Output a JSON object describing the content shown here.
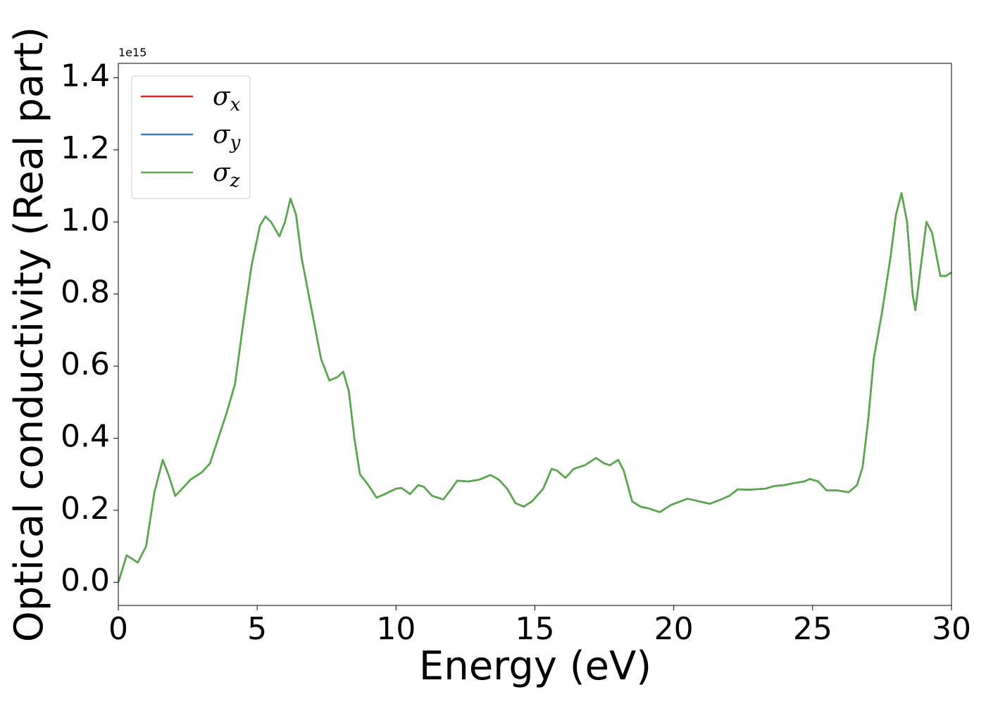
{
  "chart_data": {
    "type": "line",
    "xlabel": "Energy (eV)",
    "ylabel": "Optical conductivity (Real part)",
    "y_offset_text": "1e15",
    "xlim": [
      0,
      30
    ],
    "ylim": [
      -0.064,
      1.44
    ],
    "xticks": [
      0,
      5,
      10,
      15,
      20,
      25,
      30
    ],
    "yticks": [
      {
        "value": 0,
        "label": "0.0"
      },
      0.2,
      0.4,
      0.6,
      0.8,
      {
        "value": 1,
        "label": "1.0"
      },
      1.2,
      1.4
    ],
    "legend": "upper left",
    "x": [
      0,
      0.3,
      0.5,
      0.7,
      1.0,
      1.3,
      1.6,
      1.8,
      2.05,
      2.3,
      2.6,
      3.0,
      3.3,
      3.6,
      3.9,
      4.2,
      4.5,
      4.8,
      5.1,
      5.3,
      5.5,
      5.8,
      6.0,
      6.2,
      6.4,
      6.6,
      7.0,
      7.3,
      7.6,
      7.9,
      8.1,
      8.3,
      8.5,
      8.7,
      9.0,
      9.3,
      9.6,
      10.0,
      10.2,
      10.5,
      10.8,
      11.0,
      11.3,
      11.7,
      12.0,
      12.2,
      12.6,
      13.0,
      13.4,
      13.7,
      14.0,
      14.3,
      14.6,
      14.9,
      15.3,
      15.6,
      15.8,
      16.1,
      16.4,
      16.8,
      17.2,
      17.5,
      17.7,
      18.0,
      18.2,
      18.5,
      18.8,
      19.1,
      19.5,
      19.9,
      20.5,
      20.9,
      21.3,
      21.7,
      22.0,
      22.3,
      22.7,
      23.3,
      23.6,
      24.0,
      24.3,
      24.7,
      24.9,
      25.2,
      25.5,
      25.9,
      26.3,
      26.6,
      26.8,
      27.0,
      27.2,
      27.5,
      27.8,
      28.0,
      28.2,
      28.4,
      28.6,
      28.7,
      28.9,
      29.1,
      29.3,
      29.6,
      29.8,
      30
    ],
    "series": [
      {
        "name": "σx",
        "color": "#d62728",
        "values": [
          0,
          0.075,
          0.065,
          0.055,
          0.1,
          0.25,
          0.34,
          0.3,
          0.24,
          0.26,
          0.285,
          0.305,
          0.33,
          0.4,
          0.47,
          0.55,
          0.72,
          0.88,
          0.99,
          1.015,
          1.0,
          0.96,
          1.0,
          1.065,
          1.02,
          0.9,
          0.74,
          0.62,
          0.56,
          0.57,
          0.585,
          0.53,
          0.4,
          0.3,
          0.27,
          0.235,
          0.245,
          0.26,
          0.262,
          0.245,
          0.27,
          0.265,
          0.24,
          0.23,
          0.26,
          0.282,
          0.28,
          0.285,
          0.298,
          0.285,
          0.26,
          0.22,
          0.21,
          0.225,
          0.26,
          0.315,
          0.31,
          0.29,
          0.315,
          0.325,
          0.345,
          0.33,
          0.325,
          0.34,
          0.31,
          0.225,
          0.21,
          0.205,
          0.195,
          0.215,
          0.232,
          0.225,
          0.218,
          0.23,
          0.24,
          0.258,
          0.257,
          0.26,
          0.267,
          0.27,
          0.275,
          0.28,
          0.287,
          0.28,
          0.255,
          0.255,
          0.25,
          0.27,
          0.32,
          0.45,
          0.62,
          0.75,
          0.9,
          1.02,
          1.08,
          1.0,
          0.8,
          0.755,
          0.88,
          1.0,
          0.97,
          0.85,
          0.85,
          0.86
        ]
      },
      {
        "name": "σy",
        "color": "#3b7db5",
        "values": [
          0,
          0.075,
          0.065,
          0.055,
          0.1,
          0.25,
          0.34,
          0.3,
          0.24,
          0.26,
          0.285,
          0.305,
          0.33,
          0.4,
          0.47,
          0.55,
          0.72,
          0.88,
          0.99,
          1.015,
          1.0,
          0.96,
          1.0,
          1.065,
          1.02,
          0.9,
          0.74,
          0.62,
          0.56,
          0.57,
          0.585,
          0.53,
          0.4,
          0.3,
          0.27,
          0.235,
          0.245,
          0.26,
          0.262,
          0.245,
          0.27,
          0.265,
          0.24,
          0.23,
          0.26,
          0.282,
          0.28,
          0.285,
          0.298,
          0.285,
          0.26,
          0.22,
          0.21,
          0.225,
          0.26,
          0.315,
          0.31,
          0.29,
          0.315,
          0.325,
          0.345,
          0.33,
          0.325,
          0.34,
          0.31,
          0.225,
          0.21,
          0.205,
          0.195,
          0.215,
          0.232,
          0.225,
          0.218,
          0.23,
          0.24,
          0.258,
          0.257,
          0.26,
          0.267,
          0.27,
          0.275,
          0.28,
          0.287,
          0.28,
          0.255,
          0.255,
          0.25,
          0.27,
          0.32,
          0.45,
          0.62,
          0.75,
          0.9,
          1.02,
          1.08,
          1.0,
          0.8,
          0.755,
          0.88,
          1.0,
          0.97,
          0.85,
          0.85,
          0.86
        ]
      },
      {
        "name": "σz",
        "color": "#59a84b",
        "values": [
          0,
          0.075,
          0.065,
          0.055,
          0.1,
          0.25,
          0.34,
          0.3,
          0.24,
          0.26,
          0.285,
          0.305,
          0.33,
          0.4,
          0.47,
          0.55,
          0.72,
          0.88,
          0.99,
          1.015,
          1.0,
          0.96,
          1.0,
          1.065,
          1.02,
          0.9,
          0.74,
          0.62,
          0.56,
          0.57,
          0.585,
          0.53,
          0.4,
          0.3,
          0.27,
          0.235,
          0.245,
          0.26,
          0.262,
          0.245,
          0.27,
          0.265,
          0.24,
          0.23,
          0.26,
          0.282,
          0.28,
          0.285,
          0.298,
          0.285,
          0.26,
          0.22,
          0.21,
          0.225,
          0.26,
          0.315,
          0.31,
          0.29,
          0.315,
          0.325,
          0.345,
          0.33,
          0.325,
          0.34,
          0.31,
          0.225,
          0.21,
          0.205,
          0.195,
          0.215,
          0.232,
          0.225,
          0.218,
          0.23,
          0.24,
          0.258,
          0.257,
          0.26,
          0.267,
          0.27,
          0.275,
          0.28,
          0.287,
          0.28,
          0.255,
          0.255,
          0.25,
          0.27,
          0.32,
          0.45,
          0.62,
          0.75,
          0.9,
          1.02,
          1.08,
          1.0,
          0.8,
          0.755,
          0.88,
          1.0,
          0.97,
          0.85,
          0.85,
          0.86
        ]
      }
    ]
  }
}
